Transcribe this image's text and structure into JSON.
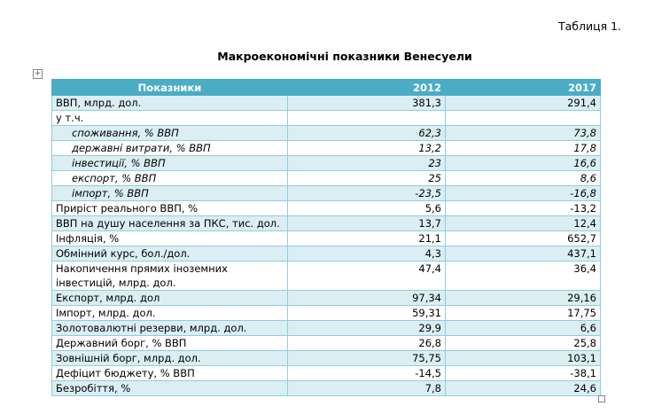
{
  "caption": "Таблиця 1.",
  "title": "Макроекономічні показники Венесуели",
  "colors": {
    "header": "#4BACC6",
    "band": "#DAEEF3",
    "border": "#92CDDC"
  },
  "table": {
    "headers": [
      "Показники",
      "2012",
      "2017"
    ],
    "rows": [
      {
        "label": "ВВП, млрд. дол.",
        "v2012": "381,3",
        "v2017": "291,4"
      },
      {
        "label": "у т.ч.",
        "v2012": "",
        "v2017": ""
      },
      {
        "label": "споживання, % ВВП",
        "v2012": "62,3",
        "v2017": "73,8"
      },
      {
        "label": "державні витрати, % ВВП",
        "v2012": "13,2",
        "v2017": "17,8"
      },
      {
        "label": "інвестиції, % ВВП",
        "v2012": "23",
        "v2017": "16,6"
      },
      {
        "label": "експорт, % ВВП",
        "v2012": "25",
        "v2017": "8,6"
      },
      {
        "label": "імпорт, % ВВП",
        "v2012": "-23,5",
        "v2017": "-16,8"
      },
      {
        "label": "Приріст реального ВВП, %",
        "v2012": "5,6",
        "v2017": "-13,2"
      },
      {
        "label": "ВВП на душу населення за ПКС, тис. дол.",
        "v2012": "13,7",
        "v2017": "12,4"
      },
      {
        "label": "Інфляція, %",
        "v2012": "21,1",
        "v2017": "652,7"
      },
      {
        "label": "Обмінний курс, бол./дол.",
        "v2012": "4,3",
        "v2017": "437,1"
      },
      {
        "label": "Накопичення прямих іноземних інвестицій, млрд. дол.",
        "v2012": "47,4",
        "v2017": "36,4"
      },
      {
        "label": "Експорт, млрд. дол",
        "v2012": "97,34",
        "v2017": "29,16"
      },
      {
        "label": "Імпорт, млрд. дол.",
        "v2012": "59,31",
        "v2017": "17,75"
      },
      {
        "label": "Золотовалютні резерви, млрд. дол.",
        "v2012": "29,9",
        "v2017": "6,6"
      },
      {
        "label": "Державний борг, % ВВП",
        "v2012": "26,8",
        "v2017": "25,8"
      },
      {
        "label": "Зовнішній борг, млрд. дол.",
        "v2012": "75,75",
        "v2017": "103,1"
      },
      {
        "label": "Дефіцит бюджету, % ВВП",
        "v2012": "-14,5",
        "v2017": "-38,1"
      },
      {
        "label": "Безробіття, %",
        "v2012": "7,8",
        "v2017": "24,6"
      }
    ]
  }
}
